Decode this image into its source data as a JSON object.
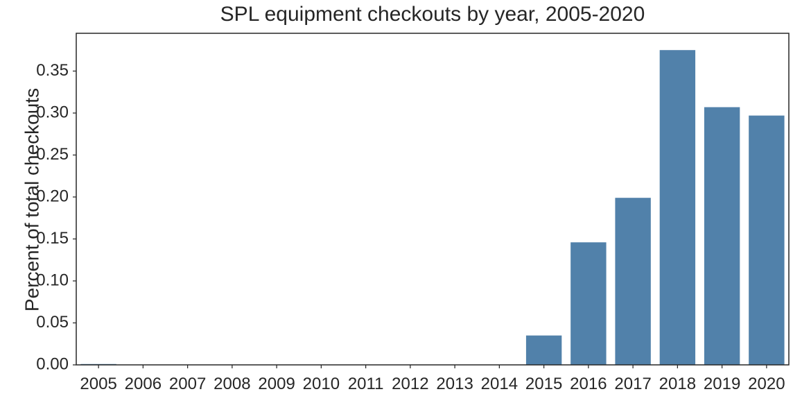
{
  "chart_data": {
    "type": "bar",
    "title": "SPL equipment checkouts by year, 2005-2020",
    "xlabel": "",
    "ylabel": "Percent of total checkouts",
    "categories": [
      "2005",
      "2006",
      "2007",
      "2008",
      "2009",
      "2010",
      "2011",
      "2012",
      "2013",
      "2014",
      "2015",
      "2016",
      "2017",
      "2018",
      "2019",
      "2020"
    ],
    "values": [
      0.001,
      0.0003,
      0.0002,
      0.0002,
      0.0002,
      0.0002,
      0.0002,
      0.0002,
      0.0002,
      0.0002,
      0.035,
      0.146,
      0.199,
      0.375,
      0.307,
      0.297
    ],
    "ylim": [
      0,
      0.395
    ],
    "yticks": [
      0.0,
      0.05,
      0.1,
      0.15,
      0.2,
      0.25,
      0.3,
      0.35
    ],
    "ytick_labels": [
      "0.00",
      "0.05",
      "0.10",
      "0.15",
      "0.20",
      "0.25",
      "0.30",
      "0.35"
    ],
    "bar_color": "#5181aa",
    "grid": false,
    "legend": "none"
  }
}
